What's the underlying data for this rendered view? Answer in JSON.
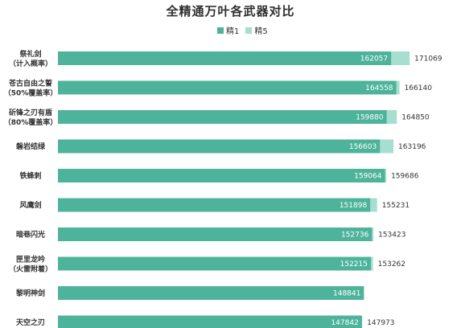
{
  "chart_data": {
    "type": "bar",
    "orientation": "horizontal",
    "title": "全精通万叶各武器对比",
    "legend_position": "top",
    "categories": [
      [
        "祭礼剑",
        "（计入概率）"
      ],
      [
        "苍古自由之誓",
        "（50%覆盖率）"
      ],
      [
        "斫锋之刃有盾",
        "（80%覆盖率）"
      ],
      [
        "磐岩结绿"
      ],
      [
        "铁蜂刺"
      ],
      [
        "风鹰剑"
      ],
      [
        "暗巷闪光"
      ],
      [
        "匣里龙吟",
        "（火雷附着）"
      ],
      [
        "黎明神剑"
      ],
      [
        "天空之刃"
      ]
    ],
    "series": [
      {
        "name": "精1",
        "color": "#4db39a",
        "values": [
          162057,
          164558,
          159880,
          156603,
          159064,
          151898,
          152736,
          152215,
          148841,
          147842
        ]
      },
      {
        "name": "精5",
        "color": "#a6ded0",
        "values": [
          171069,
          166140,
          164850,
          163196,
          159686,
          155231,
          153423,
          153262,
          null,
          147973
        ]
      }
    ],
    "stacking": "overlay",
    "xlim": [
      0,
      180000
    ],
    "grid": false
  }
}
